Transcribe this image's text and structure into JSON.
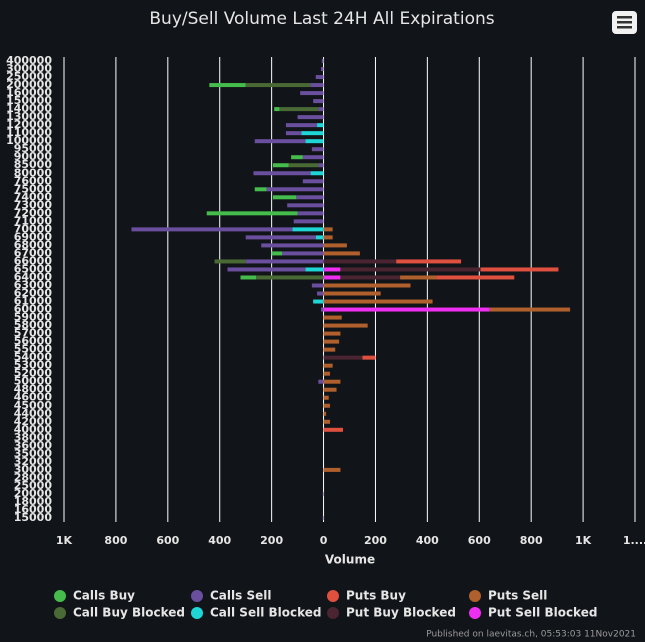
{
  "chart_data": {
    "type": "hbar_stacked",
    "title": "Buy/Sell Volume Last 24H All Expirations",
    "x_label": "Volume",
    "footer": "Published on laevitas.ch, 05:53:03 11Nov2021",
    "categories": [
      "400000",
      "300000",
      "250000",
      "200000",
      "160000",
      "150000",
      "140000",
      "130000",
      "120000",
      "110000",
      "100000",
      "95000",
      "90000",
      "85000",
      "80000",
      "76000",
      "75000",
      "74000",
      "73000",
      "72000",
      "71000",
      "70000",
      "69000",
      "68000",
      "67000",
      "66000",
      "65000",
      "64000",
      "63000",
      "62000",
      "61000",
      "60000",
      "59000",
      "58000",
      "57000",
      "56000",
      "55000",
      "54000",
      "53000",
      "52000",
      "50000",
      "48000",
      "46000",
      "45000",
      "44000",
      "42000",
      "40000",
      "38000",
      "36000",
      "35000",
      "32000",
      "30000",
      "28000",
      "25000",
      "20000",
      "18000",
      "16000",
      "15000"
    ],
    "xlim": [
      -1000,
      1200
    ],
    "xticks": [
      {
        "value": -1000,
        "label": "1K"
      },
      {
        "value": -800,
        "label": "800"
      },
      {
        "value": -600,
        "label": "600"
      },
      {
        "value": -400,
        "label": "400"
      },
      {
        "value": -200,
        "label": "200"
      },
      0,
      200,
      400,
      600,
      800,
      {
        "value": 1000,
        "label": "1K"
      },
      {
        "value": 1200,
        "label": "1...."
      }
    ],
    "grid": true,
    "series": [
      {
        "name": "Calls Buy",
        "color": "#44bd4c",
        "values": [
          0,
          0,
          0,
          -140,
          0,
          0,
          -20,
          0,
          0,
          0,
          0,
          0,
          -45,
          -60,
          0,
          0,
          -45,
          -90,
          0,
          -350,
          0,
          0,
          0,
          0,
          -40,
          0,
          0,
          -60,
          0,
          0,
          0,
          0,
          0,
          0,
          0,
          0,
          0,
          0,
          0,
          0,
          0,
          0,
          0,
          0,
          0,
          0,
          0,
          0,
          0,
          0,
          0,
          0,
          0,
          0,
          0,
          0,
          0,
          0
        ]
      },
      {
        "name": "Calls Sell",
        "color": "#6a4f9e",
        "values": [
          -7,
          -10,
          -30,
          -50,
          -90,
          -40,
          -20,
          -100,
          -120,
          -60,
          -195,
          -45,
          -80,
          -20,
          -220,
          -80,
          -220,
          -105,
          -140,
          -100,
          -115,
          -620,
          -270,
          -240,
          -160,
          -300,
          -300,
          0,
          -45,
          -25,
          0,
          -10,
          0,
          0,
          0,
          0,
          0,
          0,
          0,
          0,
          -20,
          0,
          0,
          0,
          0,
          0,
          0,
          0,
          0,
          0,
          0,
          0,
          0,
          0,
          -3,
          0,
          0,
          -3
        ]
      },
      {
        "name": "Puts Buy",
        "color": "#e0503f",
        "values": [
          0,
          0,
          0,
          0,
          0,
          0,
          0,
          0,
          0,
          0,
          0,
          0,
          0,
          0,
          0,
          0,
          0,
          0,
          0,
          0,
          0,
          0,
          0,
          0,
          0,
          250,
          300,
          300,
          0,
          0,
          0,
          0,
          0,
          0,
          0,
          0,
          0,
          50,
          0,
          0,
          0,
          0,
          0,
          0,
          0,
          0,
          75,
          0,
          0,
          0,
          0,
          0,
          0,
          0,
          0,
          0,
          0,
          0
        ]
      },
      {
        "name": "Puts Sell",
        "color": "#b0602d",
        "values": [
          0,
          0,
          0,
          0,
          0,
          0,
          0,
          0,
          0,
          0,
          0,
          0,
          0,
          0,
          0,
          0,
          0,
          0,
          0,
          0,
          0,
          35,
          35,
          90,
          140,
          0,
          0,
          140,
          335,
          220,
          420,
          310,
          70,
          170,
          65,
          60,
          45,
          0,
          35,
          25,
          65,
          50,
          20,
          25,
          10,
          25,
          0,
          0,
          0,
          0,
          0,
          65,
          0,
          0,
          0,
          0,
          0,
          0
        ]
      },
      {
        "name": "Call Buy Blocked",
        "color": "#4a6a35",
        "values": [
          0,
          0,
          0,
          -250,
          0,
          0,
          -150,
          0,
          0,
          0,
          0,
          0,
          0,
          -115,
          0,
          0,
          0,
          0,
          0,
          0,
          0,
          0,
          0,
          0,
          0,
          -120,
          0,
          -260,
          0,
          0,
          0,
          0,
          0,
          0,
          0,
          0,
          0,
          0,
          0,
          0,
          0,
          0,
          0,
          0,
          0,
          0,
          0,
          0,
          0,
          0,
          0,
          0,
          0,
          0,
          0,
          0,
          0,
          0
        ]
      },
      {
        "name": "Call Sell Blocked",
        "color": "#1ed6d6",
        "values": [
          0,
          0,
          0,
          0,
          0,
          0,
          0,
          0,
          -25,
          -85,
          -70,
          0,
          0,
          0,
          -50,
          0,
          0,
          0,
          0,
          0,
          0,
          -120,
          -30,
          0,
          0,
          0,
          -70,
          0,
          0,
          0,
          -40,
          0,
          0,
          0,
          0,
          0,
          0,
          0,
          0,
          0,
          0,
          0,
          0,
          0,
          0,
          0,
          0,
          0,
          0,
          0,
          0,
          0,
          0,
          0,
          0,
          0,
          0,
          0
        ]
      },
      {
        "name": "Put Buy Blocked",
        "color": "#4a2430",
        "values": [
          0,
          0,
          0,
          0,
          0,
          0,
          0,
          0,
          0,
          0,
          0,
          0,
          0,
          0,
          0,
          0,
          0,
          0,
          0,
          0,
          0,
          0,
          0,
          0,
          0,
          280,
          540,
          230,
          0,
          0,
          0,
          0,
          0,
          0,
          0,
          0,
          0,
          150,
          0,
          0,
          0,
          0,
          0,
          0,
          0,
          0,
          0,
          0,
          0,
          0,
          0,
          0,
          0,
          0,
          0,
          0,
          0,
          0
        ]
      },
      {
        "name": "Put Sell Blocked",
        "color": "#ee2ef0",
        "values": [
          0,
          0,
          0,
          0,
          0,
          0,
          0,
          0,
          0,
          0,
          0,
          0,
          0,
          0,
          0,
          0,
          0,
          0,
          0,
          0,
          0,
          0,
          0,
          0,
          0,
          0,
          65,
          65,
          0,
          0,
          0,
          640,
          0,
          0,
          0,
          0,
          0,
          0,
          0,
          0,
          0,
          0,
          0,
          0,
          0,
          0,
          0,
          0,
          0,
          0,
          0,
          0,
          0,
          0,
          0,
          0,
          0,
          0
        ]
      }
    ]
  }
}
